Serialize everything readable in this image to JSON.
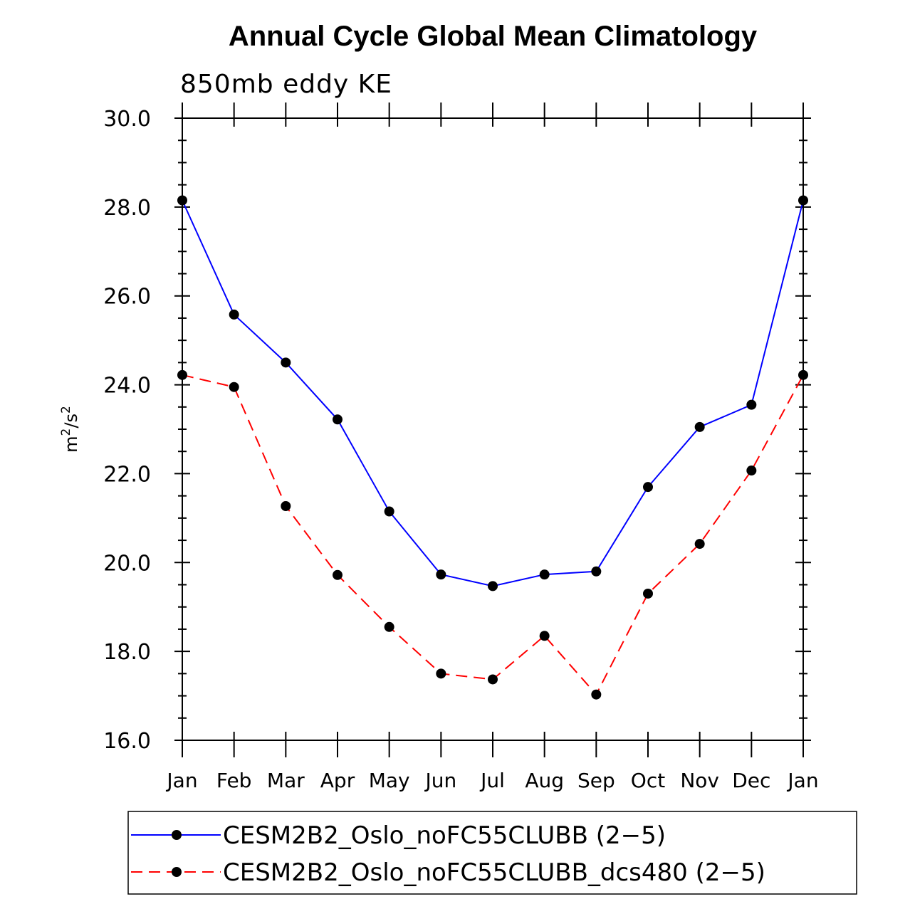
{
  "chart_data": {
    "type": "line",
    "title": "Annual Cycle Global Mean Climatology",
    "subtitle": "850mb eddy KE",
    "ylabel": {
      "base": "m",
      "sup1": "2",
      "sep": "/s",
      "sup2": "2"
    },
    "ylim": [
      16.0,
      30.0
    ],
    "ymajor_step": 2.0,
    "yminor_step": 0.5,
    "ytick_labels": [
      "16.0",
      "18.0",
      "20.0",
      "22.0",
      "24.0",
      "26.0",
      "28.0",
      "30.0"
    ],
    "categories": [
      "Jan",
      "Feb",
      "Mar",
      "Apr",
      "May",
      "Jun",
      "Jul",
      "Aug",
      "Sep",
      "Oct",
      "Nov",
      "Dec",
      "Jan"
    ],
    "series": [
      {
        "name": "CESM2B2_Oslo_noFC55CLUBB (2−5)",
        "color": "#0000ff",
        "dash": "solid",
        "values": [
          28.15,
          25.58,
          24.5,
          23.22,
          21.15,
          19.73,
          19.47,
          19.73,
          19.8,
          21.7,
          23.05,
          23.55,
          28.15
        ]
      },
      {
        "name": "CESM2B2_Oslo_noFC55CLUBB_dcs480 (2−5)",
        "color": "#ff0000",
        "dash": "dashed",
        "values": [
          24.22,
          23.95,
          21.27,
          19.72,
          18.55,
          17.5,
          17.37,
          18.35,
          17.03,
          19.3,
          20.42,
          22.07,
          24.22
        ]
      }
    ],
    "legend_position": "bottom",
    "marker": "filled-circle",
    "marker_color": "#000000"
  }
}
